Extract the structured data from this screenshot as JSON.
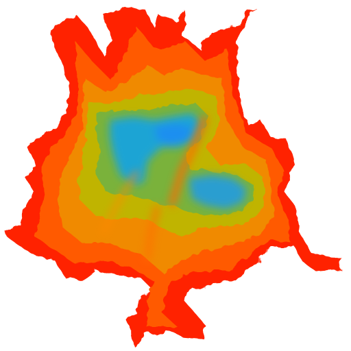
{
  "map": {
    "type": "elevation-heatmap",
    "background": "#ffffff",
    "colormap": [
      {
        "level": 0.0,
        "color": "#ff2a00"
      },
      {
        "level": 0.22,
        "color": "#ff6a00"
      },
      {
        "level": 0.42,
        "color": "#e8a000"
      },
      {
        "level": 0.58,
        "color": "#a8c000"
      },
      {
        "level": 0.72,
        "color": "#4cb070"
      },
      {
        "level": 0.86,
        "color": "#1aa0d8"
      },
      {
        "level": 1.0,
        "color": "#1e8ff0"
      }
    ],
    "legend": "none",
    "axes": "none"
  }
}
